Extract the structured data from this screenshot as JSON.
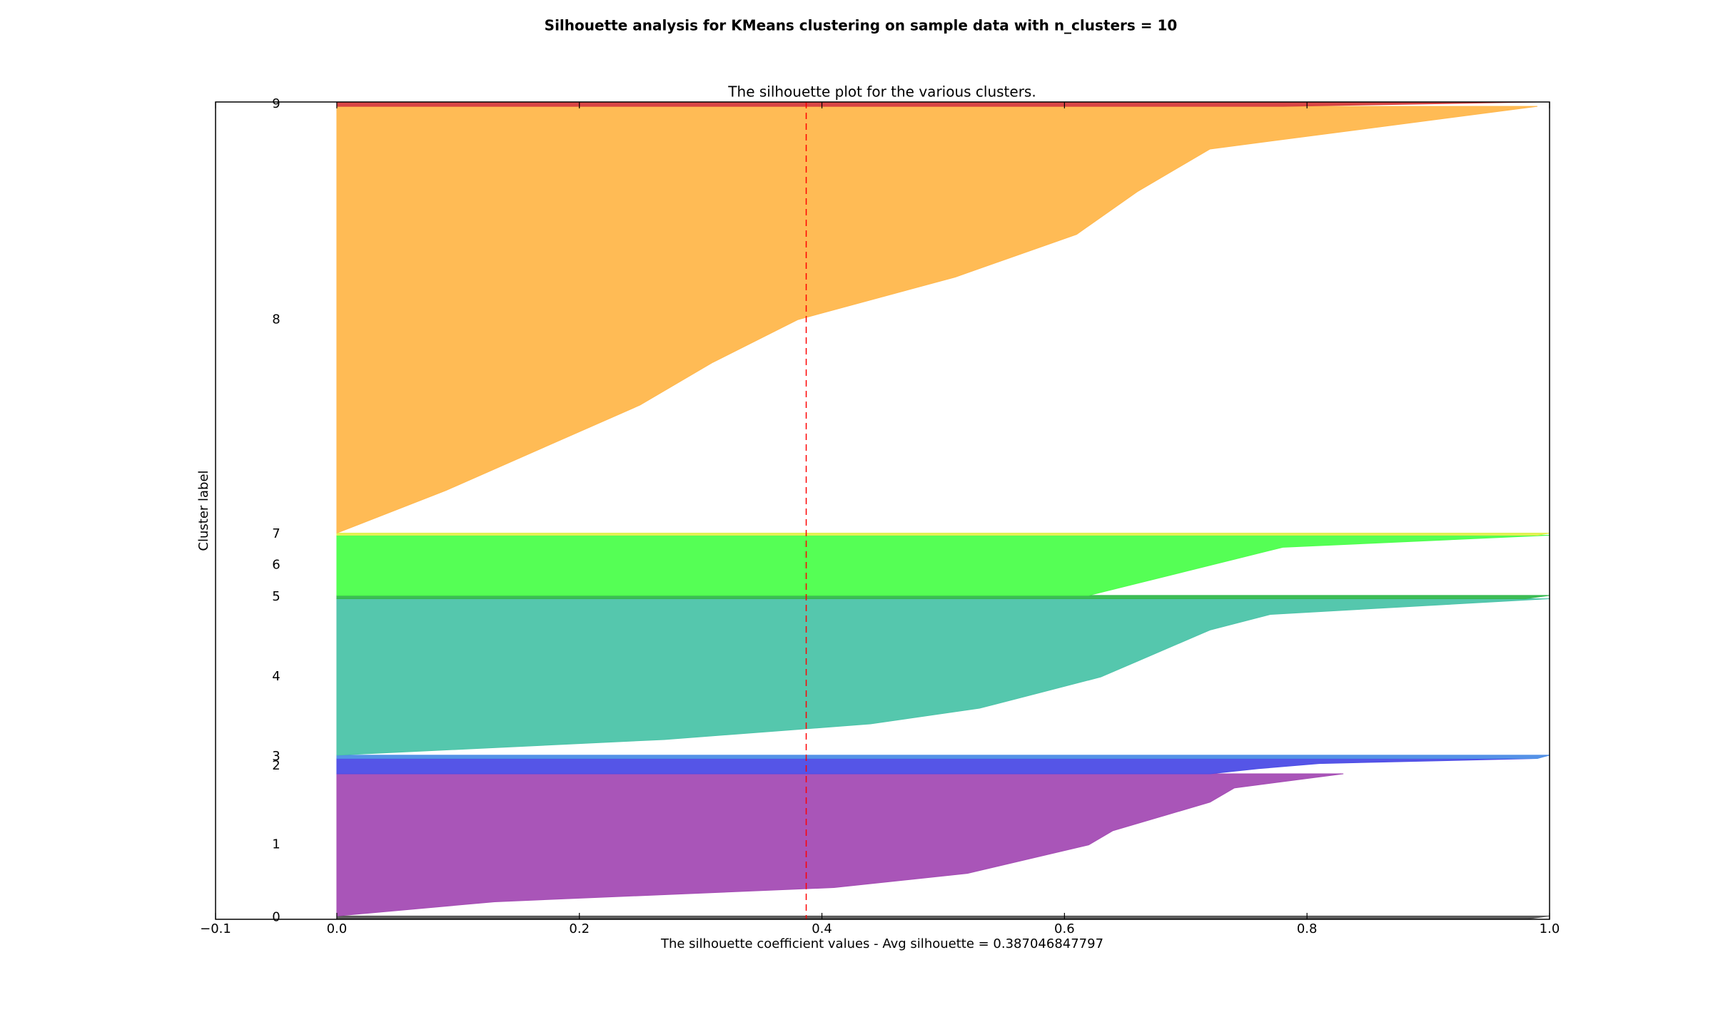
{
  "chart_data": {
    "type": "silhouette",
    "suptitle": "Silhouette analysis for KMeans clustering on sample data with n_clusters = 10",
    "title": "The silhouette plot for the various clusters.",
    "x_label": "The silhouette coefficient values - Avg silhouette = 0.387046847797",
    "y_label": "Cluster label",
    "avg_silhouette": 0.387046847797,
    "avg_line_color": "#ff0000",
    "xlim": [
      -0.1,
      1.0
    ],
    "xticks": [
      {
        "value": -0.1,
        "label": "−0.1"
      },
      {
        "value": 0,
        "label": "0.0"
      },
      0.2,
      0.4,
      0.6,
      0.8,
      {
        "value": 1,
        "label": "1.0"
      }
    ],
    "series": [
      {
        "name": "0",
        "color": "#555555",
        "size": 3,
        "values": [
          0.98,
          1.0
        ]
      },
      {
        "name": "1",
        "color": "#a44cb4",
        "size": 130,
        "values": [
          0.0,
          0.13,
          0.41,
          0.52,
          0.57,
          0.62,
          0.64,
          0.68,
          0.72,
          0.74,
          0.83
        ]
      },
      {
        "name": "2",
        "color": "#4c4ce6",
        "size": 14,
        "values": [
          0.72,
          0.76,
          0.81,
          0.99
        ]
      },
      {
        "name": "3",
        "color": "#4c8ce6",
        "size": 3,
        "values": [
          0.99,
          1.0
        ]
      },
      {
        "name": "4",
        "color": "#4cc4a9",
        "size": 143,
        "values": [
          0.0,
          0.27,
          0.44,
          0.53,
          0.58,
          0.63,
          0.66,
          0.69,
          0.72,
          0.77,
          1.0
        ]
      },
      {
        "name": "5",
        "color": "#33b84c",
        "size": 3,
        "values": [
          0.98,
          1.0
        ]
      },
      {
        "name": "6",
        "color": "#4cff4c",
        "size": 55,
        "values": [
          0.62,
          0.66,
          0.7,
          0.74,
          0.78,
          1.0
        ]
      },
      {
        "name": "7",
        "color": "#e0f04c",
        "size": 2,
        "values": [
          0.99,
          1.0
        ]
      },
      {
        "name": "8",
        "color": "#ffb74c",
        "size": 390,
        "values": [
          0.0,
          0.09,
          0.17,
          0.25,
          0.31,
          0.38,
          0.51,
          0.61,
          0.66,
          0.72,
          0.99
        ]
      },
      {
        "name": "9",
        "color": "#d63c3c",
        "size": 4,
        "values": [
          0.78,
          0.99
        ]
      }
    ]
  }
}
